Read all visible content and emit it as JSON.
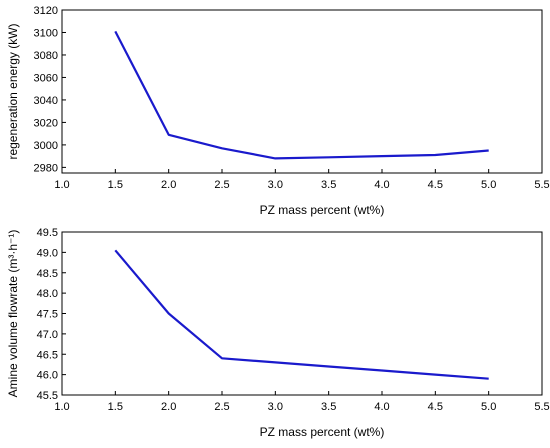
{
  "chart_data": [
    {
      "type": "line",
      "xlabel": "PZ mass percent (wt%)",
      "ylabel": "regeneration energy (kW)",
      "xlim": [
        1.0,
        5.5
      ],
      "ylim": [
        2975,
        3120
      ],
      "xticks": [
        1.0,
        1.5,
        2.0,
        2.5,
        3.0,
        3.5,
        4.0,
        4.5,
        5.0,
        5.5
      ],
      "xtick_labels": [
        "1.0",
        "1.5",
        "2.0",
        "2.5",
        "3.0",
        "3.5",
        "4.0",
        "4.5",
        "5.0",
        "5.5"
      ],
      "yticks": [
        2980,
        3000,
        3020,
        3040,
        3060,
        3080,
        3100,
        3120
      ],
      "ytick_labels": [
        "2980",
        "3000",
        "3020",
        "3040",
        "3060",
        "3080",
        "3100",
        "3120"
      ],
      "grid": false,
      "series": [
        {
          "color": "#1a1acc",
          "x": [
            1.5,
            2.0,
            2.5,
            3.0,
            3.5,
            4.0,
            4.5,
            5.0
          ],
          "y": [
            3101,
            3009,
            2997,
            2988,
            2989,
            2990,
            2991,
            2995
          ]
        }
      ]
    },
    {
      "type": "line",
      "xlabel": "PZ mass percent (wt%)",
      "ylabel": "Amine volume flowrate (m³·h⁻¹)",
      "xlim": [
        1.0,
        5.5
      ],
      "ylim": [
        45.5,
        49.5
      ],
      "xticks": [
        1.0,
        1.5,
        2.0,
        2.5,
        3.0,
        3.5,
        4.0,
        4.5,
        5.0,
        5.5
      ],
      "xtick_labels": [
        "1.0",
        "1.5",
        "2.0",
        "2.5",
        "3.0",
        "3.5",
        "4.0",
        "4.5",
        "5.0",
        "5.5"
      ],
      "yticks": [
        45.5,
        46.0,
        46.5,
        47.0,
        47.5,
        48.0,
        48.5,
        49.0,
        49.5
      ],
      "ytick_labels": [
        "45.5",
        "46.0",
        "46.5",
        "47.0",
        "47.5",
        "48.0",
        "48.5",
        "49.0",
        "49.5"
      ],
      "grid": false,
      "series": [
        {
          "color": "#1a1acc",
          "x": [
            1.5,
            2.0,
            2.5,
            3.0,
            3.5,
            4.0,
            4.5,
            5.0
          ],
          "y": [
            49.05,
            47.5,
            46.4,
            46.3,
            46.2,
            46.1,
            46.0,
            45.9
          ]
        }
      ]
    }
  ]
}
